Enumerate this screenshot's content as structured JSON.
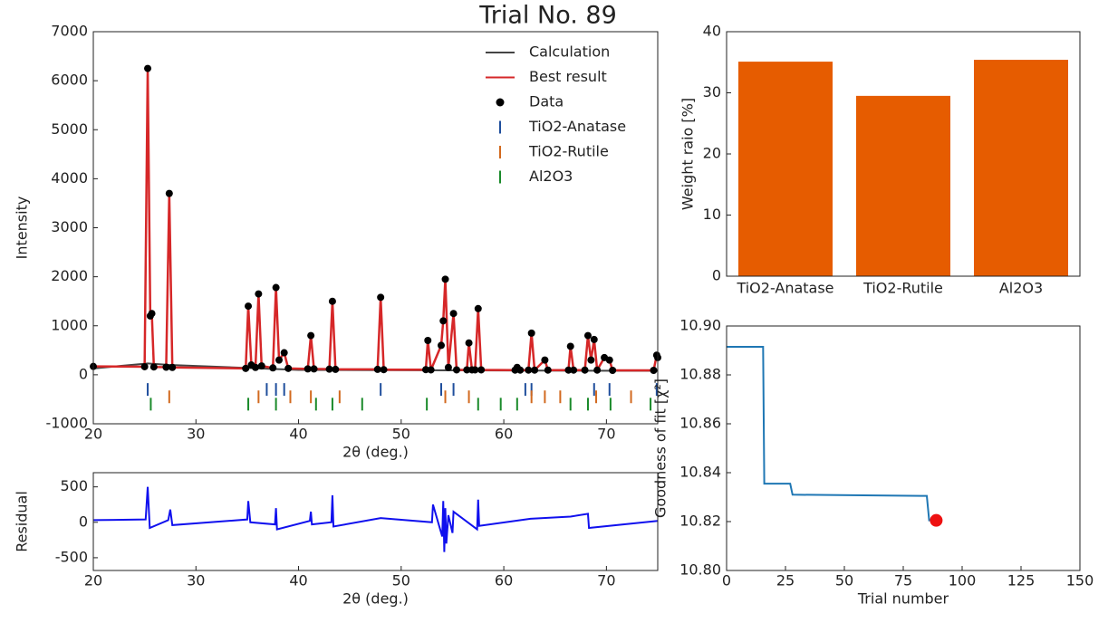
{
  "title": "Trial No. 89",
  "chart_data": [
    {
      "type": "line",
      "xlabel": "2θ (deg.)",
      "ylabel": "Intensity",
      "xlim": [
        20,
        75
      ],
      "xticks": [
        20,
        30,
        40,
        50,
        60,
        70
      ],
      "ylim": [
        -1000,
        7000
      ],
      "yticks": [
        -1000,
        0,
        1000,
        2000,
        3000,
        4000,
        5000,
        6000,
        7000
      ],
      "legend": "upper right",
      "x": [
        20,
        25.0,
        25.3,
        25.55,
        25.7,
        25.9,
        27.1,
        27.4,
        27.7,
        34.85,
        35.1,
        35.4,
        35.8,
        36.1,
        36.4,
        37.5,
        37.8,
        38.1,
        38.6,
        39.0,
        40.9,
        41.2,
        41.5,
        43.0,
        43.3,
        43.6,
        47.7,
        48.0,
        48.3,
        52.4,
        52.6,
        52.9,
        53.9,
        54.1,
        54.3,
        54.6,
        55.1,
        55.4,
        56.4,
        56.6,
        56.9,
        57.2,
        57.5,
        57.8,
        61.1,
        61.3,
        61.6,
        62.4,
        62.7,
        63.0,
        64.0,
        64.3,
        66.3,
        66.5,
        66.8,
        67.9,
        68.2,
        68.5,
        68.8,
        69.1,
        69.8,
        70.3,
        70.6,
        74.6,
        74.9,
        75
      ],
      "series": [
        {
          "name": "Calculation",
          "type": "line",
          "color": "#444444",
          "x": [
            20,
            25.3,
            27.4,
            40,
            55,
            75
          ],
          "values": [
            130,
            230,
            200,
            100,
            90,
            80
          ]
        },
        {
          "name": "Best result",
          "type": "line",
          "color": "#d62728",
          "values": [
            170,
            165,
            6250,
            1200,
            1250,
            160,
            155,
            3700,
            150,
            130,
            1400,
            200,
            150,
            1650,
            180,
            140,
            1780,
            300,
            450,
            130,
            120,
            800,
            120,
            115,
            1500,
            110,
            110,
            1580,
            105,
            105,
            700,
            100,
            600,
            1100,
            1950,
            150,
            1250,
            100,
            100,
            650,
            100,
            100,
            1350,
            100,
            95,
            150,
            95,
            95,
            850,
            95,
            300,
            95,
            95,
            580,
            95,
            95,
            800,
            300,
            720,
            95,
            350,
            300,
            90,
            90,
            400,
            350
          ]
        },
        {
          "name": "Data",
          "type": "scatter",
          "color": "#000000",
          "values": [
            170,
            165,
            6250,
            1200,
            1250,
            160,
            155,
            3700,
            150,
            130,
            1400,
            200,
            150,
            1650,
            180,
            140,
            1780,
            300,
            450,
            130,
            120,
            800,
            120,
            115,
            1500,
            110,
            110,
            1580,
            105,
            105,
            700,
            100,
            600,
            1100,
            1950,
            150,
            1250,
            100,
            100,
            650,
            100,
            100,
            1350,
            100,
            95,
            150,
            95,
            95,
            850,
            95,
            300,
            95,
            95,
            580,
            95,
            95,
            800,
            300,
            720,
            95,
            350,
            300,
            90,
            90,
            400,
            350
          ]
        },
        {
          "name": "TiO2-Anatase",
          "type": "tick",
          "color": "#1f4e9c",
          "y": -300,
          "x": [
            25.3,
            36.9,
            37.8,
            38.6,
            48.0,
            53.9,
            55.1,
            62.1,
            62.7,
            68.8,
            70.3,
            74.9
          ]
        },
        {
          "name": "TiO2-Rutile",
          "type": "tick",
          "color": "#d2691e",
          "y": -450,
          "x": [
            27.4,
            36.1,
            39.2,
            41.2,
            44.0,
            54.3,
            56.6,
            62.7,
            64.0,
            65.5,
            69.0,
            72.4
          ]
        },
        {
          "name": "Al2O3",
          "type": "tick",
          "color": "#1a8a2a",
          "y": -600,
          "x": [
            25.6,
            35.1,
            37.8,
            41.7,
            43.3,
            46.2,
            52.5,
            57.5,
            59.7,
            61.3,
            66.5,
            68.2,
            70.4,
            74.3
          ]
        }
      ]
    },
    {
      "type": "line",
      "xlabel": "2θ (deg.)",
      "ylabel": "Residual",
      "xlim": [
        20,
        75
      ],
      "xticks": [
        20,
        30,
        40,
        50,
        60,
        70
      ],
      "ylim": [
        -680,
        700
      ],
      "yticks": [
        -500,
        0,
        500
      ],
      "x": [
        20,
        25.1,
        25.3,
        25.5,
        27.3,
        27.5,
        27.7,
        35.0,
        35.1,
        35.3,
        37.7,
        37.8,
        37.9,
        41.1,
        41.2,
        41.3,
        43.2,
        43.3,
        43.4,
        48.0,
        53.0,
        53.1,
        54.0,
        54.1,
        54.2,
        54.3,
        54.4,
        54.6,
        55.0,
        55.1,
        57.4,
        57.5,
        57.6,
        62.6,
        66.5,
        68.2,
        68.3,
        75
      ],
      "series": [
        {
          "type": "line",
          "color": "#1010ee",
          "values": [
            30,
            40,
            500,
            -80,
            30,
            180,
            -40,
            40,
            300,
            0,
            -30,
            200,
            -100,
            20,
            150,
            -30,
            0,
            380,
            -60,
            60,
            0,
            250,
            -200,
            300,
            -420,
            200,
            -300,
            100,
            -150,
            150,
            -100,
            320,
            -50,
            50,
            80,
            120,
            -80,
            20
          ]
        }
      ]
    },
    {
      "type": "bar",
      "ylabel": "Weight raio [%]",
      "categories": [
        "TiO2-Anatase",
        "TiO2-Rutile",
        "Al2O3"
      ],
      "values": [
        35.1,
        29.5,
        35.4
      ],
      "color": "#e65c00",
      "ylim": [
        0,
        40
      ],
      "yticks": [
        0,
        10,
        20,
        30,
        40
      ]
    },
    {
      "type": "line",
      "xlabel": "Trial number",
      "ylabel": "Goodness of fit [χ²]",
      "xlim": [
        0,
        150
      ],
      "xticks": [
        0,
        25,
        50,
        75,
        100,
        125,
        150
      ],
      "ylim": [
        10.8,
        10.9
      ],
      "yticks": [
        {
          "value": 10.8,
          "label": "10.80"
        },
        {
          "value": 10.82,
          "label": "10.82"
        },
        {
          "value": 10.84,
          "label": "10.84"
        },
        {
          "value": 10.86,
          "label": "10.86"
        },
        {
          "value": 10.88,
          "label": "10.88"
        },
        {
          "value": 10.9,
          "label": "10.90"
        }
      ],
      "series": [
        {
          "type": "line",
          "color": "#1f77b4",
          "x": [
            0,
            15.5,
            16,
            27,
            28,
            85,
            86,
            89
          ],
          "values": [
            10.8915,
            10.8915,
            10.8355,
            10.8355,
            10.831,
            10.8305,
            10.8205,
            10.8205
          ]
        },
        {
          "type": "scatter",
          "color": "#ee1111",
          "x": [
            89
          ],
          "values": [
            10.8205
          ]
        }
      ]
    }
  ]
}
